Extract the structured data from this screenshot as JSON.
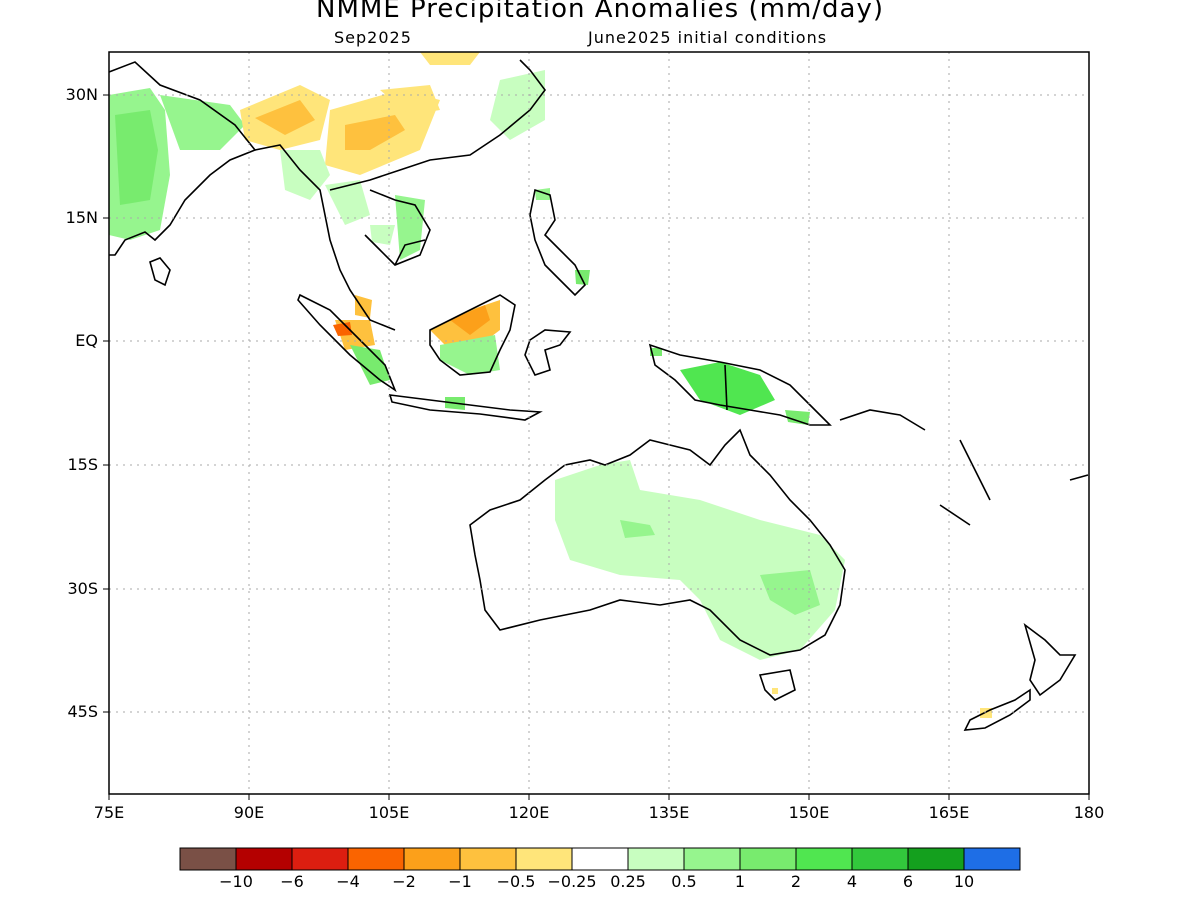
{
  "title": "NMME Precipitation Anomalies (mm/day)",
  "valid_month": "Sep2025",
  "initial_conditions": "June2025 initial conditions",
  "lat_ticks": [
    {
      "label": "30N",
      "lat": 30
    },
    {
      "label": "15N",
      "lat": 15
    },
    {
      "label": "EQ",
      "lat": 0
    },
    {
      "label": "15S",
      "lat": -15
    },
    {
      "label": "30S",
      "lat": -30
    },
    {
      "label": "45S",
      "lat": -45
    }
  ],
  "lon_ticks": [
    {
      "label": "75E",
      "lon": 75
    },
    {
      "label": "90E",
      "lon": 90
    },
    {
      "label": "105E",
      "lon": 105
    },
    {
      "label": "120E",
      "lon": 120
    },
    {
      "label": "135E",
      "lon": 135
    },
    {
      "label": "150E",
      "lon": 150
    },
    {
      "label": "165E",
      "lon": 165
    },
    {
      "label": "180",
      "lon": 180
    }
  ],
  "map_extent": {
    "lon_min": 75,
    "lon_max": 180,
    "lat_min": -55,
    "lat_max": 35
  },
  "colorbar": {
    "colors": [
      "#7a5046",
      "#b40000",
      "#dc1e10",
      "#fa6400",
      "#fca01a",
      "#fec13e",
      "#ffe57a",
      "#ffffff",
      "#c8fec0",
      "#96f58e",
      "#78eb6e",
      "#50e650",
      "#32c83c",
      "#14a01e",
      "#1e6ee6"
    ],
    "labels": [
      "-10",
      "-6",
      "-4",
      "-2",
      "-1",
      "-0.5",
      "-0.25",
      "0.25",
      "0.5",
      "1",
      "2",
      "4",
      "6",
      "10"
    ]
  },
  "legend_colors": {
    "land_outline": "#000000",
    "gridline": "#aaaaaa"
  }
}
